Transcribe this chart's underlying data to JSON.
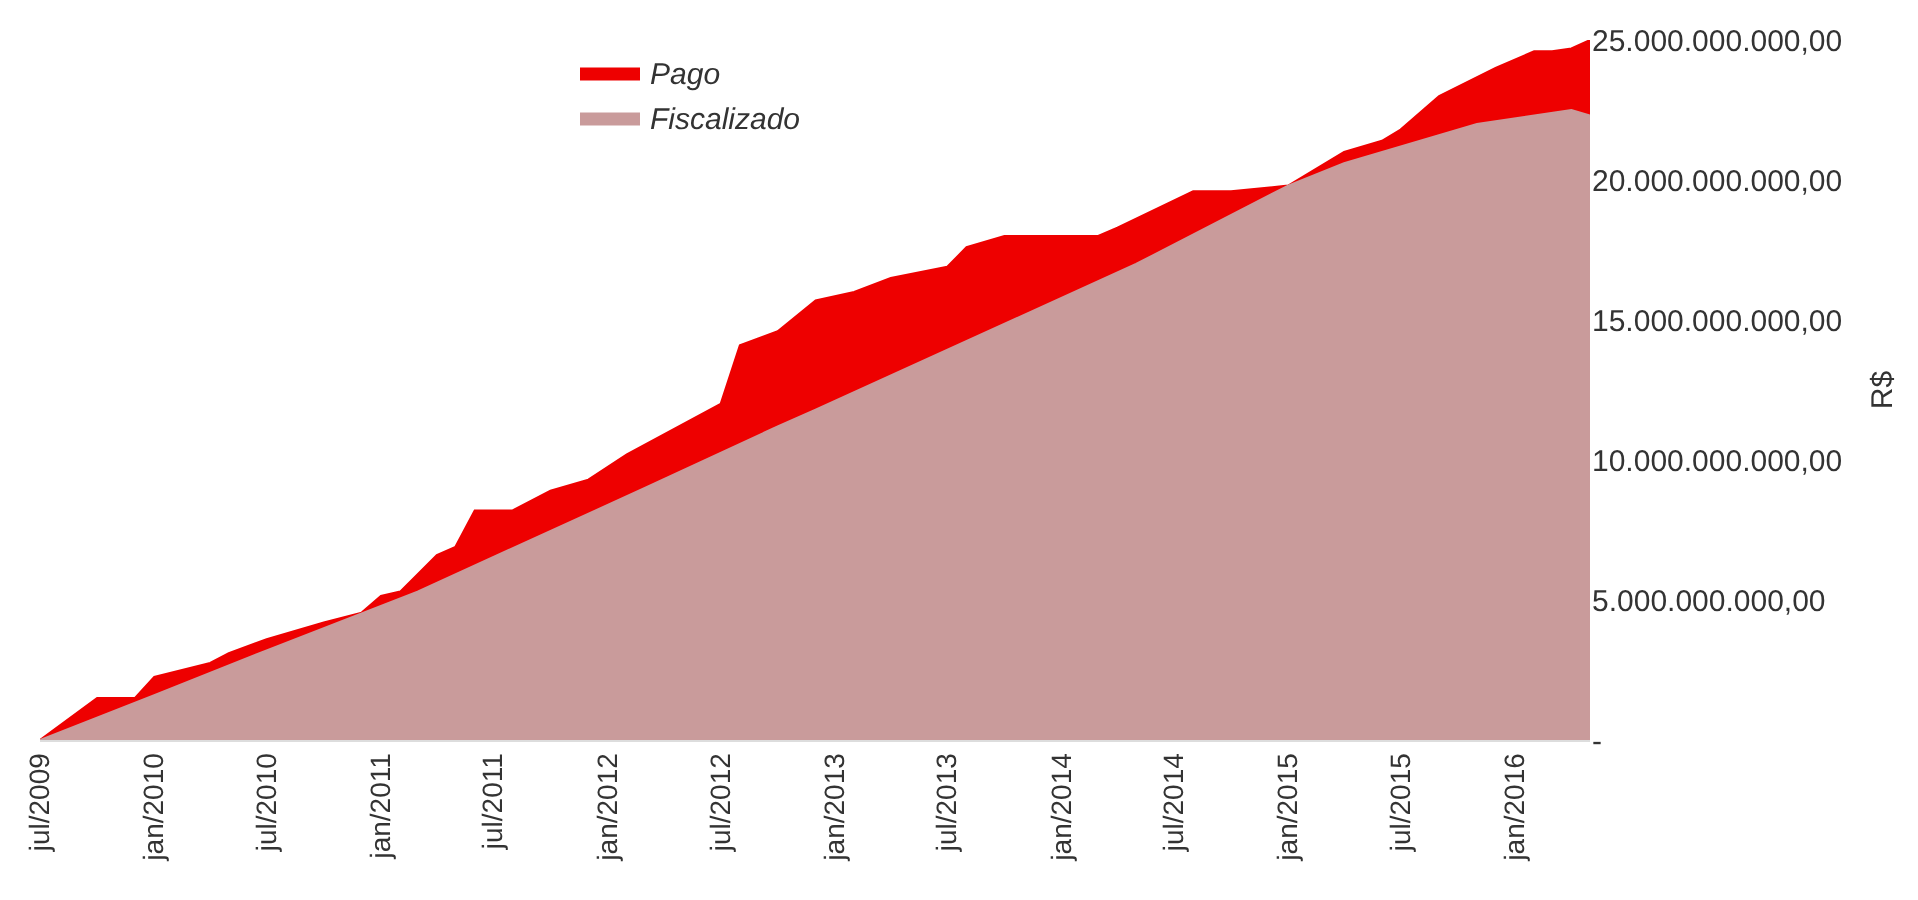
{
  "chart_data": {
    "type": "area",
    "ylabel": "R$",
    "series": [
      {
        "name": "Pago",
        "color": "#ee0000",
        "x": [
          "2009-07",
          "2009-10",
          "2009-12",
          "2010-01",
          "2010-04",
          "2010-05",
          "2010-07",
          "2010-10",
          "2010-12",
          "2011-01",
          "2011-02",
          "2011-04",
          "2011-05",
          "2011-06",
          "2011-08",
          "2011-10",
          "2011-12",
          "2012-02",
          "2012-07",
          "2012-08",
          "2012-10",
          "2012-12",
          "2013-02",
          "2013-04",
          "2013-07",
          "2013-08",
          "2013-10",
          "2014-03",
          "2014-04",
          "2014-08",
          "2014-10",
          "2015-01",
          "2015-04",
          "2015-06",
          "2015-07",
          "2015-09",
          "2015-12",
          "2016-02",
          "2016-03",
          "2016-04",
          "2016-05"
        ],
        "values": [
          0,
          1500000000,
          1500000000,
          2250000000,
          2750000000,
          3100000000,
          3600000000,
          4200000000,
          4550000000,
          5150000000,
          5300000000,
          6600000000,
          6900000000,
          8200000000,
          8200000000,
          8900000000,
          9300000000,
          10200000000,
          12000000000,
          14100000000,
          14600000000,
          15700000000,
          16000000000,
          16500000000,
          16900000000,
          17600000000,
          18000000000,
          18000000000,
          18300000000,
          19600000000,
          19600000000,
          19800000000,
          21000000000,
          21400000000,
          21800000000,
          23000000000,
          24000000000,
          24600000000,
          24600000000,
          24700000000,
          25000000000
        ]
      },
      {
        "name": "Fiscalizado",
        "color": "#c99b9b",
        "x": [
          "2009-07",
          "2010-01",
          "2010-07",
          "2011-03",
          "2012-03",
          "2012-10",
          "2012-12",
          "2014-05",
          "2015-01",
          "2015-04",
          "2015-11",
          "2016-04",
          "2016-05"
        ],
        "values": [
          0,
          1600000000,
          3200000000,
          5300000000,
          9000000000,
          11200000000,
          11800000000,
          17000000000,
          19800000000,
          20600000000,
          22000000000,
          22500000000,
          22300000000
        ]
      }
    ],
    "xlim": [
      "2009-07",
      "2016-05"
    ],
    "xticks": [
      {
        "value": "2009-07",
        "label": "jul/2009"
      },
      {
        "value": "2010-01",
        "label": "jan/2010"
      },
      {
        "value": "2010-07",
        "label": "jul/2010"
      },
      {
        "value": "2011-01",
        "label": "jan/2011"
      },
      {
        "value": "2011-07",
        "label": "jul/2011"
      },
      {
        "value": "2012-01",
        "label": "jan/2012"
      },
      {
        "value": "2012-07",
        "label": "jul/2012"
      },
      {
        "value": "2013-01",
        "label": "jan/2013"
      },
      {
        "value": "2013-07",
        "label": "jul/2013"
      },
      {
        "value": "2014-01",
        "label": "jan/2014"
      },
      {
        "value": "2014-07",
        "label": "jul/2014"
      },
      {
        "value": "2015-01",
        "label": "jan/2015"
      },
      {
        "value": "2015-07",
        "label": "jul/2015"
      },
      {
        "value": "2016-01",
        "label": "jan/2016"
      }
    ],
    "ylim": [
      0,
      25000000000
    ],
    "yticks": [
      {
        "value": 0,
        "label": "-"
      },
      {
        "value": 5000000000,
        "label": "5.000.000.000,00"
      },
      {
        "value": 10000000000,
        "label": "10.000.000.000,00"
      },
      {
        "value": 15000000000,
        "label": "15.000.000.000,00"
      },
      {
        "value": 20000000000,
        "label": "20.000.000.000,00"
      },
      {
        "value": 25000000000,
        "label": "25.000.000.000,00"
      }
    ],
    "legend": "top"
  }
}
